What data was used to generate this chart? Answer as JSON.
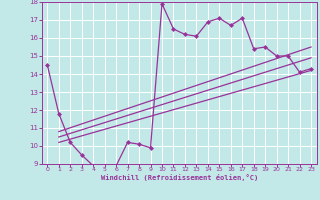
{
  "xlabel": "Windchill (Refroidissement éolien,°C)",
  "xlim": [
    -0.5,
    23.5
  ],
  "ylim": [
    9,
    18
  ],
  "xticks": [
    0,
    1,
    2,
    3,
    4,
    5,
    6,
    7,
    8,
    9,
    10,
    11,
    12,
    13,
    14,
    15,
    16,
    17,
    18,
    19,
    20,
    21,
    22,
    23
  ],
  "yticks": [
    9,
    10,
    11,
    12,
    13,
    14,
    15,
    16,
    17,
    18
  ],
  "bg_color": "#c2e8e8",
  "line_color": "#993399",
  "line1_x": [
    0,
    1,
    2,
    3,
    4,
    5,
    6,
    7,
    8,
    9,
    10,
    11,
    12,
    13,
    14,
    15,
    16,
    17,
    18,
    19,
    20,
    21,
    22,
    23
  ],
  "line1_y": [
    14.5,
    11.8,
    10.2,
    9.5,
    8.9,
    8.9,
    8.9,
    10.2,
    10.1,
    9.9,
    17.9,
    16.5,
    16.2,
    16.1,
    16.9,
    17.1,
    16.7,
    17.1,
    15.4,
    15.5,
    15.0,
    15.0,
    14.1,
    14.3
  ],
  "line2_x": [
    1,
    23
  ],
  "line2_y": [
    10.2,
    14.2
  ],
  "line3_x": [
    1,
    23
  ],
  "line3_y": [
    10.5,
    14.9
  ],
  "line4_x": [
    1,
    23
  ],
  "line4_y": [
    10.8,
    15.5
  ]
}
